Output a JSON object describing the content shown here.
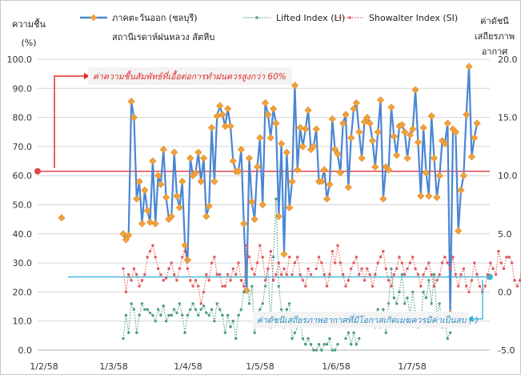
{
  "chart_data": {
    "type": "line",
    "title": "",
    "ylabel_left": [
      "ความชื้น",
      "(%)"
    ],
    "ylabel_right": [
      "ค่าดัชนี",
      "เสถียรภาพ",
      "อากาศ"
    ],
    "xlabel": "",
    "ylim_left": [
      0,
      100
    ],
    "ylim_right": [
      -5,
      20
    ],
    "yticks_left": [
      "0.0",
      "10.0",
      "20.0",
      "30.0",
      "40.0",
      "50.0",
      "60.0",
      "70.0",
      "80.0",
      "90.0",
      "100.0"
    ],
    "yticks_right": [
      "-5.0",
      "0.0",
      "5.0",
      "10.0",
      "15.0",
      "20.0"
    ],
    "xticks": [
      "1/2/58",
      "1/3/58",
      "1/4/58",
      "1/5/58",
      "1/6/58",
      "1/7/58"
    ],
    "grid": true,
    "legend_position": "top",
    "thresholds": {
      "humidity": {
        "value": 61.5,
        "axis": "left",
        "color": "#e0464b"
      },
      "stability": {
        "value": 1.3,
        "axis": "right",
        "color": "#3bb6dc"
      }
    },
    "annotations": {
      "humidity": "ค่าความชื้นสัมพัทธ์ที่เอื้อต่อการทำฝนควรสูงกว่า 60%",
      "stability": "ค่าดัชนีเสถียรภาพอากาศที่มีโอกาสเกิดเมฆควรมีค่าเป็นลบ (-)"
    },
    "series": [
      {
        "name": "ภาคตะวันออก (ชลบุรี) สถานีเรดาห์ฝนหลวง สัตหีบ",
        "axis": "left",
        "color": "#4a86d4",
        "marker_color": "#f0a13c",
        "segments": [
          [
            45.5
          ],
          [
            40,
            38,
            39.5,
            85.5,
            80,
            52,
            58,
            43.5,
            55,
            48,
            44,
            65,
            43.5,
            60,
            57,
            69,
            52.5,
            45,
            46,
            68,
            53,
            49,
            58,
            36,
            31,
            66,
            60,
            61,
            68,
            58,
            66,
            46,
            49.5,
            76.5,
            58,
            80.5,
            84,
            81,
            77,
            83,
            77,
            65,
            61.5,
            61.5,
            69,
            43.5,
            20.5,
            66,
            51,
            45,
            63,
            73,
            50,
            85,
            81,
            73,
            83,
            78,
            46,
            71,
            33,
            68,
            49,
            58,
            91,
            62,
            76.5,
            70,
            76,
            82.5,
            69,
            70,
            76,
            58,
            58,
            62,
            52,
            57,
            79.5,
            69,
            67.5,
            61,
            78,
            81,
            56,
            73,
            83,
            85,
            75,
            66,
            78.5,
            80,
            78,
            72,
            63,
            75,
            86,
            52,
            63,
            62,
            83.5,
            73.5,
            67,
            77,
            77.5,
            75,
            66,
            74,
            76,
            89.5,
            71.5,
            53,
            76.5,
            61,
            53,
            80.5,
            66,
            52.5,
            60,
            72,
            71,
            78,
            12.5,
            76,
            75,
            41,
            55,
            60,
            81,
            97.5,
            66.5,
            73,
            78
          ]
        ]
      },
      {
        "name": "Lifted Index (LI)",
        "axis": "right",
        "color": "#4f9a8a",
        "segments": [
          [
            -4,
            -2,
            -3.5,
            -1,
            -1.5,
            -3.5,
            -2,
            -1,
            -1.5,
            -1.5,
            -1.8,
            -2,
            -2.5,
            -1.5,
            -2,
            -1.2,
            -2.5,
            -2,
            -2,
            -1.5,
            -1.8,
            -1,
            -2,
            -3.5,
            -2,
            -1.5,
            -1,
            -1.5,
            -2,
            -1.5,
            -1.2,
            -1.8,
            -2,
            -1.5,
            -2.5,
            -1,
            -1.5,
            -2,
            -3.5,
            -2,
            -3,
            -2.5,
            -4,
            -2,
            -1.5,
            0,
            2,
            -1,
            0.5,
            -3.5,
            -2,
            -1.5,
            -1,
            0.5,
            2,
            -3,
            3,
            8,
            0.5,
            -1.5,
            -3,
            -1.5,
            -1,
            -4,
            -3.5,
            -3,
            -2.5,
            -4,
            -4.5,
            -4,
            -4.5,
            -5
          ],
          [
            -5,
            -4.5,
            -5,
            -4.5,
            -4.5,
            -4,
            -5,
            -5,
            -4.5
          ],
          [
            -4,
            -3.5,
            -4.5,
            -3.5,
            -4.5,
            -4
          ],
          [
            -2.5,
            -3,
            -1.5,
            -3,
            -1.5,
            -3.5,
            -1,
            2,
            -0.5,
            -1,
            0,
            1.5,
            -1,
            -0.5,
            -2,
            0,
            -2,
            -3,
            -2.5,
            0,
            -0.5,
            1,
            -1,
            1.5,
            -2,
            -1,
            -3,
            -2.5,
            -4,
            -3.5
          ]
        ]
      },
      {
        "name": "Showalter Index (SI)",
        "axis": "right",
        "color": "#e05a5a",
        "segments": [
          [
            2,
            0,
            1.5,
            1,
            2,
            1.5,
            0.5,
            1,
            1.5,
            3,
            3.5,
            4,
            3,
            2,
            1.5,
            1,
            1.2,
            2,
            2.5,
            1.5,
            1,
            2,
            3,
            3.5,
            2,
            1,
            0.5,
            1,
            0.5,
            -1,
            0,
            1.5,
            1,
            2.5,
            3,
            1.5,
            1.5,
            0.5,
            0.5,
            1.5,
            1,
            2,
            1.5,
            2.5,
            1,
            0.5,
            4,
            3,
            2,
            1.5,
            2.5,
            4,
            3,
            1,
            2,
            3.5,
            1,
            1.5,
            2.5,
            1.5,
            2,
            1.5,
            3
          ],
          [
            1.5,
            2.5,
            3,
            1.5,
            1,
            0.5,
            2,
            1.5
          ],
          [
            2,
            3,
            2.5,
            1.5,
            0.5,
            1.5,
            3.5,
            2.5,
            4,
            2.5,
            1.5,
            0.5,
            1,
            2,
            2.5,
            3,
            1.5,
            2,
            1,
            2,
            1.5,
            0.5,
            1.5,
            2.5,
            3,
            3.5,
            2,
            1,
            0.5,
            1.5,
            2,
            3,
            2.5,
            1.5,
            2,
            2.5,
            3,
            2,
            1.5,
            0.5,
            1.5,
            2,
            2.5,
            1.5,
            0.5,
            1,
            1.5,
            2.5,
            3,
            2.5,
            2,
            3,
            1.5,
            0.5,
            1.5,
            2,
            0.5,
            0,
            1,
            2.5,
            1.5,
            0.5,
            0,
            0.5,
            1.5,
            2.5,
            2,
            1.5,
            3.5,
            2.5,
            2,
            3,
            3,
            2.5,
            1,
            0.5,
            1,
            2.5,
            3,
            3,
            2,
            1,
            -0.5,
            0,
            1.5,
            0.5,
            0.5,
            1,
            -1,
            0.5,
            1.5,
            1,
            2,
            3,
            3,
            1.5,
            0.5,
            1.5,
            0,
            1,
            2,
            1.5,
            1.5,
            0.5,
            3,
            3,
            3,
            3,
            2,
            1,
            0,
            -1,
            -1.5,
            -1,
            0.5
          ]
        ]
      }
    ]
  }
}
